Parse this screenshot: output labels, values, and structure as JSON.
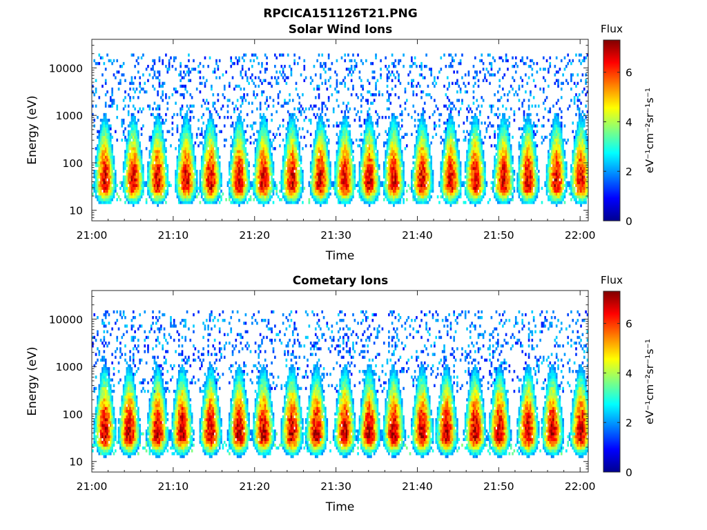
{
  "figure_title": "RPCICA151126T21.PNG",
  "colormap": [
    "#00008f",
    "#0000ff",
    "#0080ff",
    "#00ffff",
    "#80ff80",
    "#ffff00",
    "#ff8000",
    "#ff0000",
    "#800000"
  ],
  "chart_data": [
    {
      "type": "heatmap",
      "title": "Solar Wind Ions",
      "xlabel": "Time",
      "ylabel": "Energy (eV)",
      "x_ticks": [
        "21:00",
        "21:10",
        "21:20",
        "21:30",
        "21:40",
        "21:50",
        "22:00"
      ],
      "x_range": [
        "21:00",
        "22:01"
      ],
      "y_scale": "log",
      "y_ticks": [
        10,
        100,
        1000,
        10000
      ],
      "y_tick_labels": [
        "10",
        "100",
        "1000",
        "10000"
      ],
      "y_range": [
        6,
        40000
      ],
      "colorbar": {
        "title": "Flux",
        "label": "eV⁻¹cm⁻²sr⁻¹s⁻¹",
        "range": [
          0,
          7.3
        ],
        "ticks": [
          "0",
          "2",
          "4",
          "6"
        ]
      },
      "burst_times_min": [
        1.5,
        5,
        8,
        11.5,
        14.5,
        18,
        21,
        24.5,
        28,
        31,
        34,
        37,
        40.5,
        44,
        47,
        50.5,
        53.5,
        57,
        60
      ],
      "burst_peak_energy_eV": 35,
      "burst_peak_flux": 6.8,
      "background_flux_range": [
        1,
        2.5
      ],
      "background_energy_range_eV": [
        200,
        20000
      ]
    },
    {
      "type": "heatmap",
      "title": "Cometary Ions",
      "xlabel": "Time",
      "ylabel": "Energy (eV)",
      "x_ticks": [
        "21:00",
        "21:10",
        "21:20",
        "21:30",
        "21:40",
        "21:50",
        "22:00"
      ],
      "x_range": [
        "21:00",
        "22:01"
      ],
      "y_scale": "log",
      "y_ticks": [
        10,
        100,
        1000,
        10000
      ],
      "y_tick_labels": [
        "10",
        "100",
        "1000",
        "10000"
      ],
      "y_range": [
        6,
        40000
      ],
      "colorbar": {
        "title": "Flux",
        "label": "eV⁻¹cm⁻²sr⁻¹s⁻¹",
        "range": [
          0,
          7.3
        ],
        "ticks": [
          "0",
          "2",
          "4",
          "6"
        ]
      },
      "burst_times_min": [
        1.5,
        4.5,
        8,
        11,
        14.5,
        18,
        21,
        24.5,
        27.5,
        31,
        34,
        37,
        40.5,
        43.5,
        47,
        50,
        53.5,
        56.5,
        60
      ],
      "burst_peak_energy_eV": 35,
      "burst_peak_flux": 7.0,
      "background_flux_range": [
        1,
        2.5
      ],
      "background_energy_range_eV": [
        300,
        15000
      ]
    }
  ]
}
